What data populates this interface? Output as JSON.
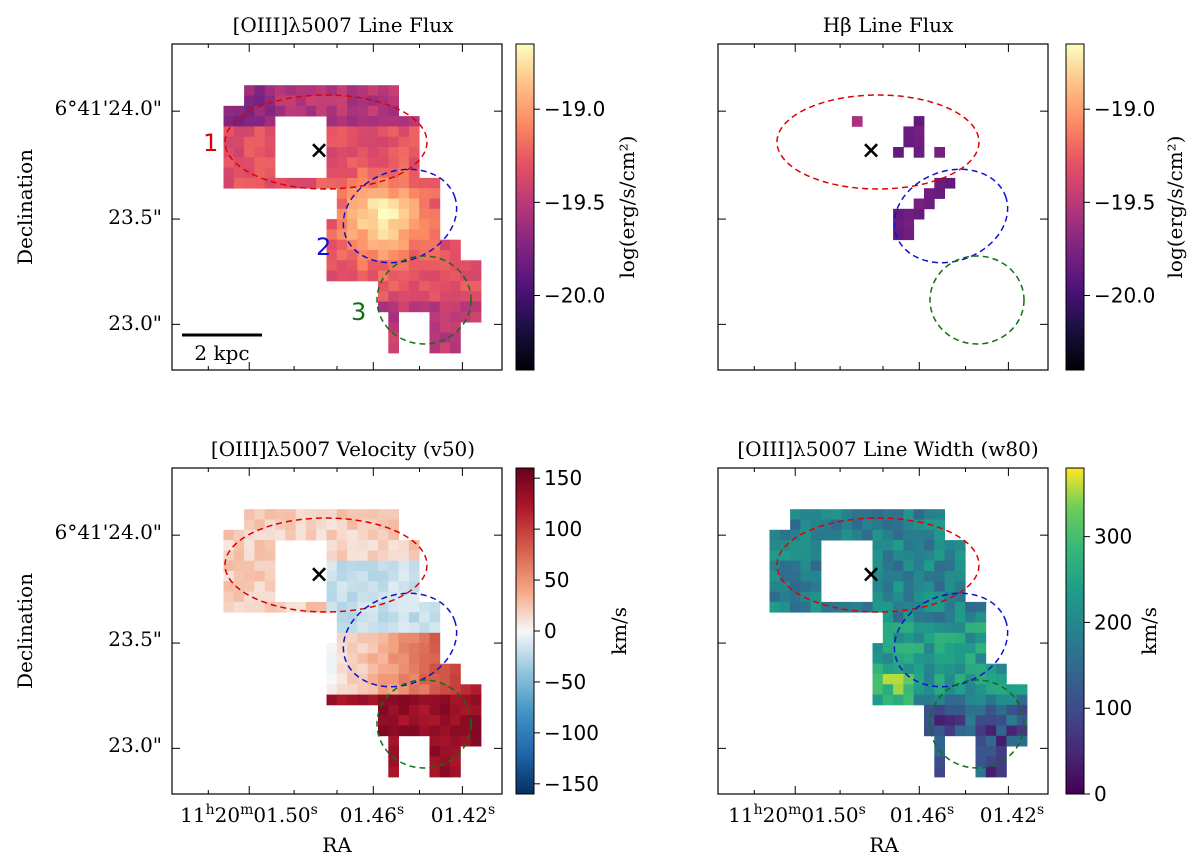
{
  "figure": {
    "ra_ticks": [
      "01.50",
      "01.46",
      "01.42"
    ],
    "ra_prefix": {
      "h": "11",
      "m": "20"
    },
    "dec_ticks": [
      "6°41'24.0\"",
      "23.5\"",
      "23.0\""
    ],
    "xlabel": "RA",
    "ylabel": "Declination"
  },
  "chart_data": [
    {
      "type": "heatmap",
      "panel": "oiii_flux",
      "title": "[OIII]λ5007 Line Flux",
      "colormap": "magma",
      "colorbar": {
        "label": "log(erg/s/cm²)",
        "ticks": [
          -19.0,
          -19.5,
          -20.0
        ],
        "tick_labels": [
          "−19.0",
          "−19.5",
          "−20.0"
        ],
        "range": [
          -20.4,
          -18.65
        ]
      },
      "scalebar": "2 kpc",
      "regions": [
        {
          "label": "1",
          "color": "#e00000"
        },
        {
          "label": "2",
          "color": "#1010d0"
        },
        {
          "label": "3",
          "color": "#107010"
        }
      ],
      "marker": "×"
    },
    {
      "type": "heatmap",
      "panel": "hbeta_flux",
      "title": "Hβ Line Flux",
      "colormap": "magma",
      "colorbar": {
        "label": "log(erg/s/cm²)",
        "ticks": [
          -19.0,
          -19.5,
          -20.0
        ],
        "tick_labels": [
          "−19.0",
          "−19.5",
          "−20.0"
        ],
        "range": [
          -20.4,
          -18.65
        ]
      },
      "marker": "×"
    },
    {
      "type": "heatmap",
      "panel": "oiii_velocity",
      "title": "[OIII]λ5007 Velocity (v50)",
      "colormap": "RdBu_r",
      "colorbar": {
        "label": "km/s",
        "ticks": [
          150,
          100,
          50,
          0,
          -50,
          -100,
          -150
        ],
        "tick_labels": [
          "150",
          "100",
          "50",
          "0",
          "−50",
          "−100",
          "−150"
        ],
        "range": [
          -160,
          160
        ]
      },
      "marker": "×"
    },
    {
      "type": "heatmap",
      "panel": "oiii_width",
      "title": "[OIII]λ5007 Line Width (w80)",
      "colormap": "viridis",
      "colorbar": {
        "label": "km/s",
        "ticks": [
          300,
          200,
          100,
          0
        ],
        "tick_labels": [
          "300",
          "200",
          "100",
          "0"
        ],
        "range": [
          0,
          380
        ]
      },
      "marker": "×"
    }
  ]
}
